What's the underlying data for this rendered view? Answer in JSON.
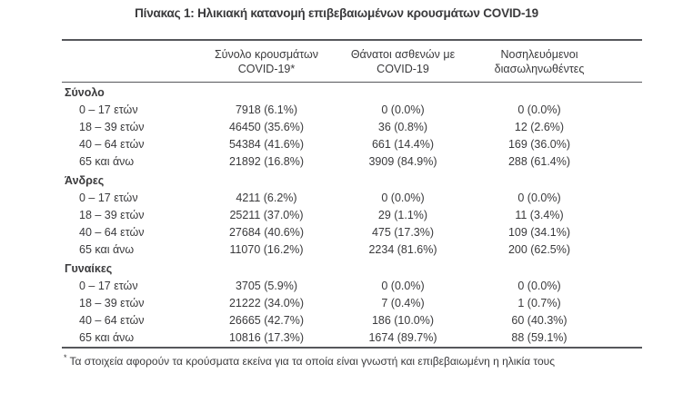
{
  "title": "Πίνακας 1: Ηλικιακή κατανομή επιβεβαιωμένων κρουσμάτων COVID-19",
  "table": {
    "column_headers": [
      {
        "line1": "Σύνολο κρουσμάτων",
        "line2": "COVID-19*"
      },
      {
        "line1": "Θάνατοι ασθενών με",
        "line2": "COVID-19"
      },
      {
        "line1": "Νοσηλευόμενοι",
        "line2": "διασωληνωθέντες"
      }
    ],
    "sections": [
      {
        "label": "Σύνολο",
        "rows": [
          {
            "label": "0 – 17 ετών",
            "cases": "7918 (6.1%)",
            "deaths": "0 (0.0%)",
            "intubated": "0 (0.0%)"
          },
          {
            "label": "18 – 39 ετών",
            "cases": "46450 (35.6%)",
            "deaths": "36 (0.8%)",
            "intubated": "12 (2.6%)"
          },
          {
            "label": "40 – 64 ετών",
            "cases": "54384 (41.6%)",
            "deaths": "661 (14.4%)",
            "intubated": "169 (36.0%)"
          },
          {
            "label": "65 και άνω",
            "cases": "21892 (16.8%)",
            "deaths": "3909 (84.9%)",
            "intubated": "288 (61.4%)"
          }
        ]
      },
      {
        "label": "Άνδρες",
        "rows": [
          {
            "label": "0 – 17 ετών",
            "cases": "4211 (6.2%)",
            "deaths": "0 (0.0%)",
            "intubated": "0 (0.0%)"
          },
          {
            "label": "18 – 39 ετών",
            "cases": "25211 (37.0%)",
            "deaths": "29 (1.1%)",
            "intubated": "11 (3.4%)"
          },
          {
            "label": "40 – 64 ετών",
            "cases": "27684 (40.6%)",
            "deaths": "475 (17.3%)",
            "intubated": "109 (34.1%)"
          },
          {
            "label": "65 και άνω",
            "cases": "11070 (16.2%)",
            "deaths": "2234 (81.6%)",
            "intubated": "200 (62.5%)"
          }
        ]
      },
      {
        "label": "Γυναίκες",
        "rows": [
          {
            "label": "0 – 17 ετών",
            "cases": "3705 (5.9%)",
            "deaths": "0 (0.0%)",
            "intubated": "0 (0.0%)"
          },
          {
            "label": "18 – 39 ετών",
            "cases": "21222 (34.0%)",
            "deaths": "7 (0.4%)",
            "intubated": "1 (0.7%)"
          },
          {
            "label": "40 – 64 ετών",
            "cases": "26665 (42.7%)",
            "deaths": "186 (10.0%)",
            "intubated": "60 (40.3%)"
          },
          {
            "label": "65 και άνω",
            "cases": "10816 (17.3%)",
            "deaths": "1674 (89.7%)",
            "intubated": "88 (59.1%)"
          }
        ]
      }
    ]
  },
  "footnote": {
    "marker": "*",
    "text": "Τα στοιχεία αφορούν τα κρούσματα εκείνα για τα οποία είναι γνωστή και επιβεβαιωμένη η ηλικία τους"
  },
  "colors": {
    "text": "#3a3a3c",
    "rule": "#56575b",
    "background": "#ffffff"
  }
}
